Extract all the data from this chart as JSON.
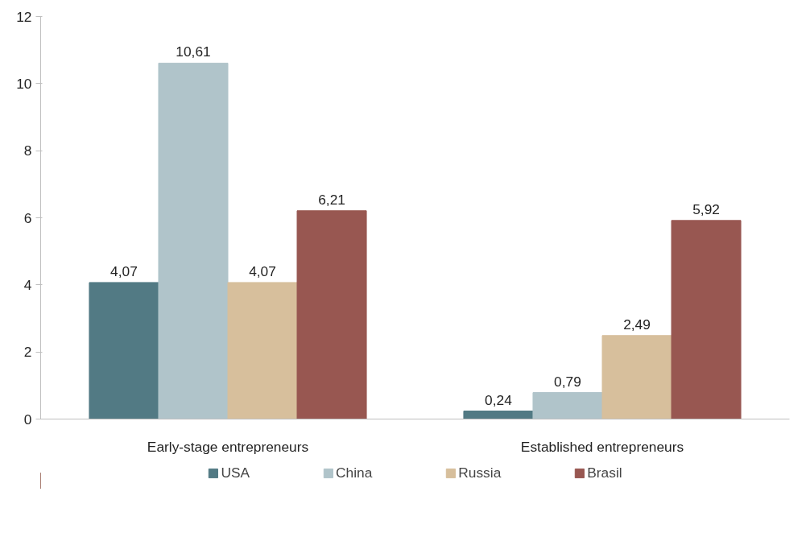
{
  "chart_data": {
    "type": "bar",
    "categories": [
      "Early-stage entrepreneurs",
      "Established entrepreneurs"
    ],
    "series": [
      {
        "name": "USA",
        "color": "#527a84",
        "values": [
          4.07,
          0.24
        ],
        "value_labels": [
          "4,07",
          "0,24"
        ]
      },
      {
        "name": "China",
        "color": "#b0c4ca",
        "values": [
          10.61,
          0.79
        ],
        "value_labels": [
          "10,61",
          "0,79"
        ]
      },
      {
        "name": "Russia",
        "color": "#d7bf9c",
        "values": [
          4.07,
          2.49
        ],
        "value_labels": [
          "4,07",
          "2,49"
        ]
      },
      {
        "name": "Brasil",
        "color": "#985751",
        "values": [
          6.21,
          5.92
        ],
        "value_labels": [
          "6,21",
          "5,92"
        ]
      }
    ],
    "ylim": [
      0,
      12
    ],
    "yticks": [
      0,
      2,
      4,
      6,
      8,
      10,
      12
    ],
    "grid": false,
    "legend": "bottom"
  }
}
